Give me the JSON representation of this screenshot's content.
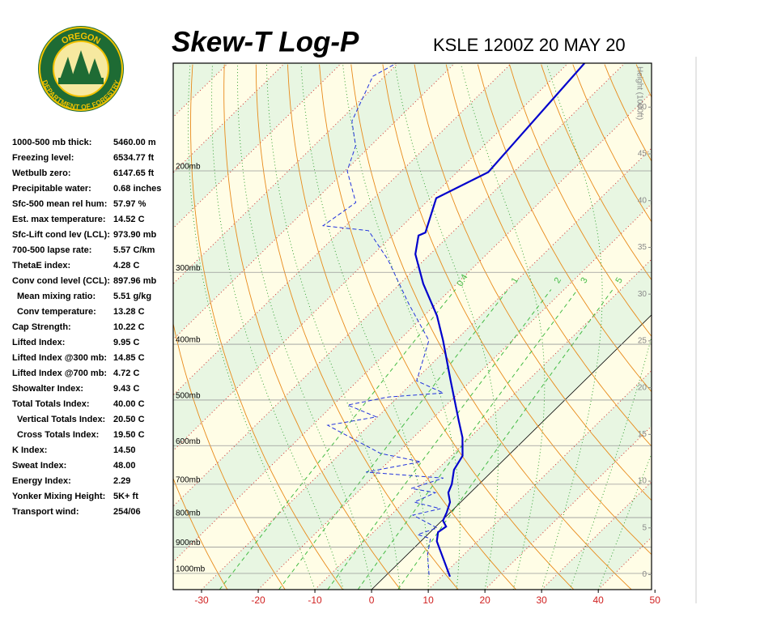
{
  "logo": {
    "top": "OREGON",
    "bottom": "DEPARTMENT OF FORESTRY"
  },
  "indices": [
    {
      "label": "1000-500 mb thick:",
      "value": "5460.00 m"
    },
    {
      "label": "Freezing level:",
      "value": "6534.77 ft"
    },
    {
      "label": "Wetbulb zero:",
      "value": "6147.65 ft"
    },
    {
      "label": "Precipitable water:",
      "value": "0.68 inches"
    },
    {
      "label": "Sfc-500 mean rel hum:",
      "value": "57.97 %"
    },
    {
      "label": "Est. max temperature:",
      "value": "14.52 C"
    },
    {
      "label": "Sfc-Lift cond lev (LCL):",
      "value": "973.90 mb"
    },
    {
      "label": "700-500 lapse rate:",
      "value": "5.57 C/km"
    },
    {
      "label": "ThetaE index:",
      "value": "4.28 C"
    },
    {
      "label": "Conv cond level (CCL):",
      "value": "897.96 mb"
    },
    {
      "label": "Mean mixing ratio:",
      "value": "5.51 g/kg"
    },
    {
      "label": "Conv temperature:",
      "value": "13.28 C"
    },
    {
      "label": "Cap Strength:",
      "value": "10.22 C"
    },
    {
      "label": "Lifted Index:",
      "value": "9.95 C"
    },
    {
      "label": "Lifted Index @300 mb:",
      "value": "14.85 C"
    },
    {
      "label": "Lifted Index @700 mb:",
      "value": "4.72 C"
    },
    {
      "label": "Showalter Index:",
      "value": "9.43 C"
    },
    {
      "label": "Total Totals Index:",
      "value": "40.00 C"
    },
    {
      "label": "Vertical Totals Index:",
      "value": "20.50 C"
    },
    {
      "label": "Cross Totals Index:",
      "value": "19.50 C"
    },
    {
      "label": "K Index:",
      "value": "14.50"
    },
    {
      "label": "Sweat Index:",
      "value": "48.00"
    },
    {
      "label": "Energy Index:",
      "value": "2.29"
    },
    {
      "label": "Yonker Mixing Height:",
      "value": "5K+ ft"
    },
    {
      "label": "Transport wind:",
      "value": "254/06"
    }
  ],
  "chart_data": {
    "type": "skewt",
    "title": "Skew-T Log-P",
    "subtitle": "KSLE 1200Z 20 MAY 20",
    "y2_label": "Height (1000ft)",
    "xlim": [
      -35,
      49.4
    ],
    "xticks": [
      -30,
      -20,
      -10,
      0,
      10,
      20,
      30,
      40,
      50
    ],
    "ylim": [
      1067,
      130
    ],
    "log_y": true,
    "yticks": [
      {
        "value": 1000,
        "label": "1000mb"
      },
      {
        "value": 900,
        "label": "900mb"
      },
      {
        "value": 800,
        "label": "800mb"
      },
      {
        "value": 700,
        "label": "700mb"
      },
      {
        "value": 600,
        "label": "600mb"
      },
      {
        "value": 500,
        "label": "500mb"
      },
      {
        "value": 400,
        "label": "400mb"
      },
      {
        "value": 300,
        "label": "300mb"
      },
      {
        "value": 200,
        "label": "200mb"
      }
    ],
    "y2lim": [
      -1.6,
      54.7
    ],
    "y2ticks": [
      0,
      5,
      10,
      15,
      20,
      25,
      30,
      35,
      40,
      45,
      50
    ],
    "mixing_ratios": [
      0.4,
      1,
      2,
      3,
      5
    ],
    "series": [
      {
        "color": "#0000cc",
        "pressure": [
          1013,
          907,
          879,
          848,
          829,
          810,
          784,
          752,
          724,
          700,
          661,
          625,
          581,
          544,
          463,
          394,
          357,
          314,
          279,
          259,
          256,
          223,
          201,
          130
        ],
        "values": [
          11.5,
          4.7,
          2.8,
          1.4,
          1.8,
          0.2,
          -0.6,
          -1.9,
          -3.9,
          -4.8,
          -7.0,
          -8.0,
          -11.3,
          -14.9,
          -23.6,
          -32.2,
          -37.7,
          -45.9,
          -52.6,
          -55.4,
          -54.7,
          -59.0,
          -54.5,
          -57.1
        ]
      },
      {
        "color": "#2233dd",
        "dashed": true,
        "pressure": [
          1006,
          928,
          870,
          856,
          834,
          792,
          772,
          752,
          724,
          712,
          683,
          667,
          640,
          619,
          553,
          535,
          510,
          494,
          486,
          463,
          394,
          340,
          285,
          254,
          249,
          227,
          200,
          181,
          164,
          137,
          130
        ],
        "values": [
          7.5,
          3.6,
          1.2,
          -1.8,
          0.5,
          -6.1,
          -2.4,
          -8.2,
          -6.2,
          -11.2,
          -7.4,
          -22.1,
          -14.3,
          -22.9,
          -37.3,
          -30.2,
          -37.4,
          -31.7,
          -22.7,
          -29.6,
          -34.7,
          -44.9,
          -56.5,
          -65.1,
          -74.0,
          -72.4,
          -79.6,
          -82.6,
          -87.7,
          -92.1,
          -90.3
        ]
      }
    ]
  }
}
